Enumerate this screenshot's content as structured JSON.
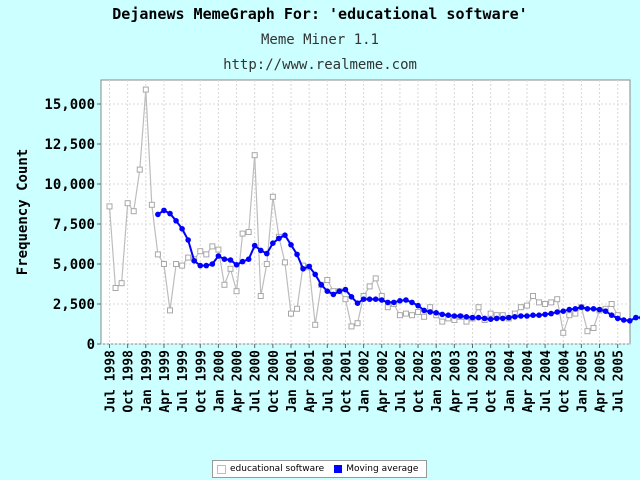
{
  "header": {
    "title": "Dejanews MemeGraph For: 'educational software'",
    "subtitle": "Meme Miner 1.1",
    "url": "http://www.realmeme.com"
  },
  "colors": {
    "background": "#ccffff",
    "raw_series": "#bdbdbd",
    "moving_average": "#0000ff"
  },
  "chart_data": {
    "type": "line",
    "ylabel": "Frequency Count",
    "xlabel": "",
    "ylim": [
      0,
      16500
    ],
    "yticks": [
      0,
      2500,
      5000,
      7500,
      10000,
      12500,
      15000
    ],
    "ytick_labels": [
      "0",
      "2,500",
      "5,000",
      "7,500",
      "10,000",
      "12,500",
      "15,000"
    ],
    "xtick_labels": [
      "Jul 1998",
      "Oct 1998",
      "Jan 1999",
      "Apr 1999",
      "Jul 1999",
      "Oct 1999",
      "Jan 2000",
      "Apr 2000",
      "Jul 2000",
      "Oct 2000",
      "Jan 2001",
      "Apr 2001",
      "Jul 2001",
      "Oct 2001",
      "Jan 2002",
      "Apr 2002",
      "Jul 2002",
      "Oct 2002",
      "Jan 2003",
      "Apr 2003",
      "Jul 2003",
      "Oct 2003",
      "Jan 2004",
      "Apr 2004",
      "Jul 2004",
      "Oct 2004",
      "Jan 2005",
      "Apr 2005",
      "Jul 2005"
    ],
    "grid": true,
    "legend_position": "bottom",
    "series": [
      {
        "name": "educational software",
        "marker": "square",
        "values": [
          8600,
          3500,
          3800,
          8800,
          8300,
          10900,
          15900,
          8700,
          5600,
          5000,
          2100,
          5000,
          4900,
          5400,
          5300,
          5800,
          5600,
          6100,
          5900,
          3700,
          4700,
          3300,
          6900,
          7000,
          11800,
          3000,
          5000,
          9200,
          6700,
          5100,
          1900,
          2200,
          4900,
          4800,
          1200,
          3700,
          4000,
          3300,
          3300,
          2800,
          1100,
          1300,
          3000,
          3600,
          4100,
          3000,
          2300,
          2500,
          1800,
          1900,
          1800,
          2000,
          1700,
          2300,
          1800,
          1400,
          1600,
          1500,
          1700,
          1400,
          1600,
          2300,
          1500,
          1900,
          1800,
          1800,
          1600,
          1900,
          2300,
          2400,
          3000,
          2600,
          2500,
          2600,
          2800,
          700,
          1800,
          1900,
          2300,
          800,
          1000,
          2100,
          2200,
          2500,
          1800
        ]
      },
      {
        "name": "Moving average",
        "marker": "circle",
        "start_index": 8,
        "values": [
          8100,
          8350,
          8150,
          7700,
          7200,
          6500,
          5200,
          4900,
          4900,
          5000,
          5500,
          5300,
          5250,
          4950,
          5150,
          5300,
          6150,
          5850,
          5650,
          6300,
          6600,
          6800,
          6200,
          5600,
          4700,
          4850,
          4350,
          3700,
          3300,
          3100,
          3300,
          3400,
          2950,
          2550,
          2800,
          2800,
          2800,
          2750,
          2600,
          2600,
          2700,
          2750,
          2600,
          2400,
          2100,
          2000,
          1950,
          1850,
          1800,
          1750,
          1750,
          1700,
          1650,
          1650,
          1600,
          1550,
          1600,
          1600,
          1650,
          1700,
          1750,
          1750,
          1800,
          1800,
          1850,
          1900,
          2000,
          2050,
          2150,
          2200,
          2300,
          2200,
          2200,
          2150,
          2050,
          1800,
          1600,
          1500,
          1450,
          1650,
          1650
        ]
      }
    ]
  },
  "legend": {
    "items": [
      "educational software",
      "Moving average"
    ]
  }
}
